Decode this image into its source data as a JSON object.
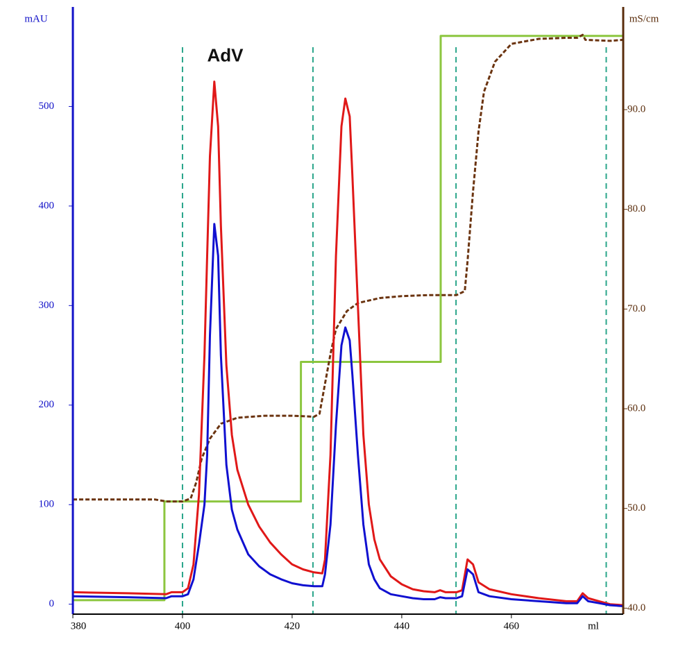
{
  "chart_data": {
    "type": "line",
    "xlabel": "ml",
    "ylabel": "mAU",
    "y2label": "mS/cm",
    "xlim": [
      380,
      480.4
    ],
    "xticks": [
      380,
      400,
      420,
      440,
      460
    ],
    "ylim": [
      -10,
      600
    ],
    "yticks": [
      0,
      100,
      200,
      300,
      400,
      500
    ],
    "y2lim": [
      39.4,
      100.3
    ],
    "y2ticks": [
      {
        "value": 40,
        "label": "40.0"
      },
      {
        "value": 50,
        "label": "50.0"
      },
      {
        "value": 60,
        "label": "60.0"
      },
      {
        "value": 70,
        "label": "70.0"
      },
      {
        "value": 80,
        "label": "80.0"
      },
      {
        "value": 90,
        "label": "90.0"
      }
    ],
    "y_axis_color": "#1010c8",
    "y2_axis_color": "#5a2d0c",
    "x": [
      380,
      390,
      397,
      398,
      400,
      401,
      402,
      403,
      404,
      404.5,
      405,
      405.8,
      406.5,
      407,
      408,
      409,
      410,
      412,
      414,
      416,
      418,
      420,
      422,
      424,
      425.5,
      426,
      427,
      428,
      429,
      429.7,
      430.5,
      431,
      432,
      433,
      434,
      435,
      436,
      438,
      440,
      442,
      444,
      446,
      447,
      448,
      450,
      451,
      452,
      453,
      454,
      456,
      460,
      465,
      470,
      472,
      473,
      474,
      476,
      478,
      480.4
    ],
    "series": [
      {
        "color": "#e01818",
        "values": [
          12,
          11,
          10,
          12,
          12,
          16,
          40,
          110,
          250,
          350,
          450,
          525,
          480,
          380,
          240,
          170,
          135,
          100,
          78,
          62,
          50,
          40,
          35,
          32,
          31,
          45,
          150,
          350,
          480,
          508,
          490,
          430,
          300,
          170,
          100,
          65,
          45,
          28,
          20,
          15,
          13,
          12,
          14,
          12,
          12,
          14,
          45,
          40,
          22,
          15,
          10,
          6,
          3,
          3,
          11,
          6,
          3,
          0,
          -1
        ]
      },
      {
        "color": "#1010d0",
        "values": [
          8,
          7,
          6,
          8,
          8,
          10,
          25,
          60,
          100,
          150,
          270,
          382,
          350,
          250,
          140,
          95,
          75,
          50,
          38,
          30,
          25,
          21,
          19,
          18,
          18,
          30,
          80,
          180,
          260,
          278,
          265,
          230,
          150,
          80,
          40,
          25,
          16,
          10,
          8,
          6,
          5,
          5,
          7,
          6,
          6,
          8,
          35,
          30,
          12,
          8,
          5,
          3,
          1,
          1,
          8,
          3,
          1,
          -1,
          -2
        ]
      },
      {
        "color": "#6b3410",
        "axis": "y2",
        "dashed": true,
        "x": [
          380,
          395,
          397,
          400,
          401.5,
          402.5,
          403.5,
          405,
          407,
          410,
          415,
          420,
          424,
          425,
          426,
          427,
          428,
          430,
          432,
          436,
          440,
          445,
          450,
          451.5,
          452,
          453,
          454,
          455,
          457,
          460,
          465,
          470,
          472,
          473,
          473.5,
          478,
          480.4
        ],
        "values": [
          50.9,
          50.9,
          50.7,
          50.7,
          51,
          52.6,
          55,
          57,
          58.5,
          59.1,
          59.3,
          59.3,
          59.2,
          59.5,
          62.5,
          65.5,
          68,
          69.8,
          70.6,
          71.1,
          71.3,
          71.4,
          71.4,
          71.8,
          74.8,
          81.8,
          87.8,
          91.8,
          94.8,
          96.6,
          97.1,
          97.2,
          97.2,
          97.5,
          97.0,
          96.9,
          97.0
        ]
      },
      {
        "color": "#8cc63f",
        "axis": "y2",
        "x": [
          380,
          396.7,
          396.7,
          421.6,
          421.6,
          447.1,
          447.1,
          480.4
        ],
        "values": [
          40.8,
          40.8,
          50.7,
          50.7,
          64.7,
          64.7,
          97.4,
          97.4
        ]
      }
    ],
    "vlines": [
      400,
      423.8,
      449.9,
      477.3
    ],
    "vline_color": "#2aa58a",
    "annotations": [
      {
        "text": "AdV",
        "x": 404.5,
        "y": 550
      }
    ]
  }
}
